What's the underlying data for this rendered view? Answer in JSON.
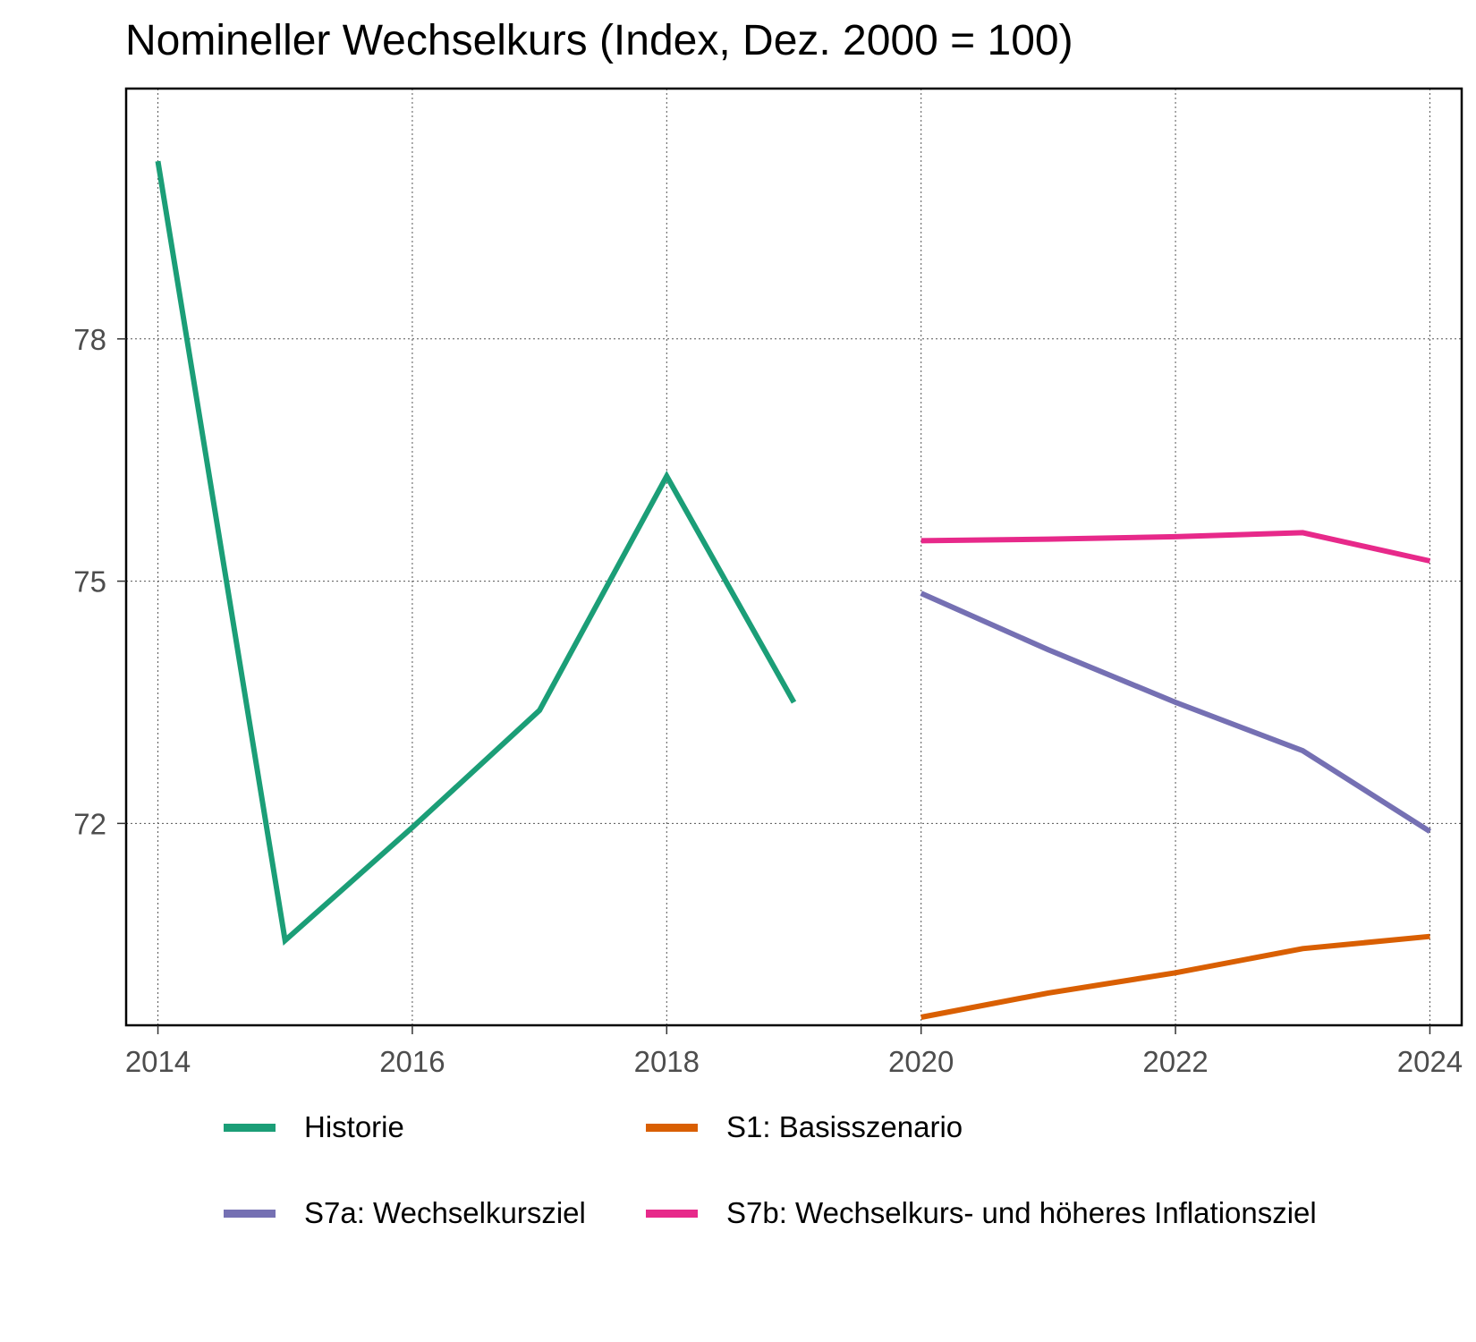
{
  "chart_data": {
    "type": "line",
    "title": "Nomineller Wechselkurs (Index, Dez. 2000 = 100)",
    "xlabel": "",
    "ylabel": "",
    "xlim": [
      2013.75,
      2024.25
    ],
    "ylim": [
      69.5,
      81.1
    ],
    "x_ticks": [
      2014,
      2016,
      2018,
      2020,
      2022,
      2024
    ],
    "y_ticks": [
      72,
      75,
      78
    ],
    "grid": true,
    "legend_position": "bottom",
    "series": [
      {
        "name": "Historie",
        "color": "#1B9E77",
        "x": [
          2014,
          2015,
          2016,
          2017,
          2018,
          2019
        ],
        "y": [
          80.2,
          70.55,
          71.95,
          73.4,
          76.3,
          73.5
        ]
      },
      {
        "name": "S1: Basisszenario",
        "color": "#D95F02",
        "x": [
          2020,
          2021,
          2022,
          2023,
          2024
        ],
        "y": [
          69.6,
          69.9,
          70.15,
          70.45,
          70.6
        ]
      },
      {
        "name": "S7a: Wechselkursziel",
        "color": "#7570B3",
        "x": [
          2020,
          2021,
          2022,
          2023,
          2024
        ],
        "y": [
          74.85,
          74.15,
          73.5,
          72.9,
          71.9
        ]
      },
      {
        "name": "S7b: Wechselkurs- und höheres Inflationsziel",
        "color": "#E7298A",
        "x": [
          2020,
          2021,
          2022,
          2023,
          2024
        ],
        "y": [
          75.5,
          75.52,
          75.55,
          75.6,
          75.25
        ]
      }
    ]
  }
}
